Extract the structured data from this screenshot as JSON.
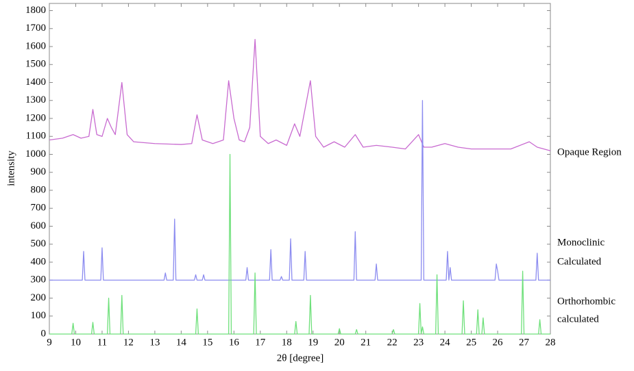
{
  "chart_data": {
    "type": "line",
    "xlabel": "2θ [degree]",
    "ylabel": "intensity",
    "xlim": [
      9,
      28
    ],
    "ylim": [
      0,
      1840
    ],
    "xticks": [
      9,
      10,
      11,
      12,
      13,
      14,
      15,
      16,
      17,
      18,
      19,
      20,
      21,
      22,
      23,
      24,
      25,
      26,
      27,
      28
    ],
    "yticks": [
      0,
      100,
      200,
      300,
      400,
      500,
      600,
      700,
      800,
      900,
      1000,
      1100,
      1200,
      1300,
      1400,
      1500,
      1600,
      1700,
      1800
    ],
    "series": [
      {
        "labels": [
          "Opaque Region"
        ],
        "color": "#c86ad0",
        "x": [
          9,
          9.5,
          9.9,
          10.2,
          10.5,
          10.65,
          10.8,
          11,
          11.2,
          11.35,
          11.5,
          11.75,
          11.95,
          12.2,
          13,
          14,
          14.4,
          14.6,
          14.8,
          15.2,
          15.6,
          15.8,
          16,
          16.2,
          16.4,
          16.6,
          16.8,
          17,
          17.3,
          17.6,
          18,
          18.3,
          18.5,
          18.9,
          19.1,
          19.4,
          19.8,
          20.2,
          20.6,
          20.9,
          21.4,
          22,
          22.5,
          23,
          23.2,
          23.5,
          24,
          24.5,
          25,
          26,
          26.5,
          27.2,
          27.5,
          28
        ],
        "values": [
          1080,
          1090,
          1110,
          1090,
          1100,
          1250,
          1110,
          1100,
          1200,
          1150,
          1110,
          1400,
          1110,
          1070,
          1060,
          1055,
          1060,
          1220,
          1080,
          1060,
          1080,
          1410,
          1200,
          1080,
          1070,
          1150,
          1640,
          1100,
          1060,
          1080,
          1050,
          1170,
          1100,
          1410,
          1100,
          1040,
          1070,
          1040,
          1110,
          1040,
          1050,
          1040,
          1030,
          1110,
          1040,
          1040,
          1060,
          1040,
          1030,
          1030,
          1030,
          1070,
          1040,
          1020
        ]
      },
      {
        "labels": [
          "Monoclinic",
          "Calculated"
        ],
        "color": "#8c8cf0",
        "x": [
          9,
          10.25,
          10.3,
          10.35,
          10.95,
          11,
          11.05,
          13.35,
          13.4,
          13.45,
          13.7,
          13.75,
          13.8,
          14.5,
          14.55,
          14.6,
          14.8,
          14.85,
          14.9,
          16.45,
          16.5,
          16.55,
          17.35,
          17.4,
          17.45,
          17.75,
          17.8,
          17.85,
          18.1,
          18.15,
          18.2,
          18.65,
          18.7,
          18.75,
          20.55,
          20.6,
          20.65,
          21.35,
          21.4,
          21.45,
          23.1,
          23.15,
          23.2,
          24.05,
          24.1,
          24.15,
          24.2,
          24.25,
          25.9,
          25.95,
          26,
          26.05,
          27.45,
          27.5,
          27.55,
          28
        ],
        "values": [
          300,
          300,
          460,
          300,
          300,
          480,
          300,
          300,
          340,
          300,
          300,
          640,
          300,
          300,
          330,
          300,
          300,
          330,
          300,
          300,
          370,
          300,
          300,
          470,
          300,
          300,
          320,
          300,
          300,
          530,
          300,
          300,
          460,
          300,
          300,
          570,
          300,
          300,
          390,
          300,
          300,
          1300,
          300,
          300,
          460,
          300,
          370,
          300,
          300,
          390,
          350,
          300,
          300,
          450,
          300,
          300
        ]
      },
      {
        "labels": [
          "Orthorhombic",
          "calculated"
        ],
        "color": "#6ee07a",
        "x": [
          9,
          9.85,
          9.9,
          9.95,
          10.6,
          10.65,
          10.7,
          11.2,
          11.25,
          11.3,
          11.7,
          11.75,
          11.8,
          14.55,
          14.6,
          14.65,
          15.8,
          15.85,
          15.9,
          16.75,
          16.8,
          16.85,
          18.3,
          18.35,
          18.4,
          18.85,
          18.9,
          18.95,
          19.95,
          20,
          20.05,
          20.6,
          20.65,
          20.7,
          22,
          22.05,
          22.1,
          23,
          23.05,
          23.1,
          23.15,
          23.2,
          23.65,
          23.7,
          23.75,
          24.65,
          24.7,
          24.75,
          25.2,
          25.25,
          25.3,
          25.4,
          25.45,
          25.5,
          26.9,
          26.95,
          27,
          27.55,
          27.6,
          27.65,
          28
        ],
        "values": [
          0,
          0,
          60,
          0,
          0,
          65,
          0,
          0,
          200,
          0,
          0,
          215,
          0,
          0,
          140,
          0,
          0,
          1000,
          0,
          0,
          340,
          0,
          0,
          70,
          0,
          0,
          215,
          0,
          0,
          30,
          0,
          0,
          25,
          0,
          0,
          25,
          0,
          0,
          170,
          0,
          40,
          0,
          0,
          330,
          0,
          0,
          185,
          0,
          0,
          135,
          0,
          0,
          90,
          0,
          0,
          350,
          0,
          0,
          80,
          0,
          0
        ]
      }
    ]
  }
}
